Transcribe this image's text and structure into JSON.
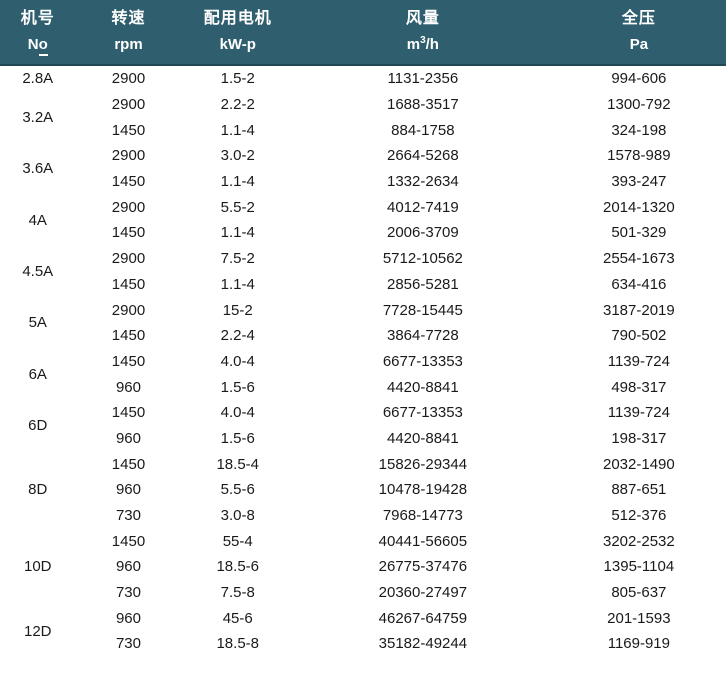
{
  "colors": {
    "header_bg": "#2F5E6E",
    "header_text": "#FFFFFF",
    "header_border": "#1F4754",
    "body_text": "#1A1A1A"
  },
  "header": {
    "cols": [
      {
        "label": "机号",
        "unit_n": "N",
        "unit_o": "o"
      },
      {
        "label": "转速",
        "unit": "rpm"
      },
      {
        "label": "配用电机",
        "unit": "kW-p"
      },
      {
        "label": "风量",
        "unit_m": "m",
        "unit_sup": "3",
        "unit_h": "/h"
      },
      {
        "label": "全压",
        "unit": "Pa"
      }
    ]
  },
  "table": {
    "groups": [
      {
        "model": "2.8A",
        "rows": [
          [
            "2900",
            "1.5-2",
            "1131-2356",
            "994-606"
          ]
        ]
      },
      {
        "model": "3.2A",
        "rows": [
          [
            "2900",
            "2.2-2",
            "1688-3517",
            "1300-792"
          ],
          [
            "1450",
            "1.1-4",
            "884-1758",
            "324-198"
          ]
        ]
      },
      {
        "model": "3.6A",
        "rows": [
          [
            "2900",
            "3.0-2",
            "2664-5268",
            "1578-989"
          ],
          [
            "1450",
            "1.1-4",
            "1332-2634",
            "393-247"
          ]
        ]
      },
      {
        "model": "4A",
        "rows": [
          [
            "2900",
            "5.5-2",
            "4012-7419",
            "2014-1320"
          ],
          [
            "1450",
            "1.1-4",
            "2006-3709",
            "501-329"
          ]
        ]
      },
      {
        "model": "4.5A",
        "rows": [
          [
            "2900",
            "7.5-2",
            "5712-10562",
            "2554-1673"
          ],
          [
            "1450",
            "1.1-4",
            "2856-5281",
            "634-416"
          ]
        ]
      },
      {
        "model": "5A",
        "rows": [
          [
            "2900",
            "15-2",
            "7728-15445",
            "3187-2019"
          ],
          [
            "1450",
            "2.2-4",
            "3864-7728",
            "790-502"
          ]
        ]
      },
      {
        "model": "6A",
        "rows": [
          [
            "1450",
            "4.0-4",
            "6677-13353",
            "1139-724"
          ],
          [
            "960",
            "1.5-6",
            "4420-8841",
            "498-317"
          ]
        ]
      },
      {
        "model": "6D",
        "rows": [
          [
            "1450",
            "4.0-4",
            "6677-13353",
            "1139-724"
          ],
          [
            "960",
            "1.5-6",
            "4420-8841",
            "198-317"
          ]
        ]
      },
      {
        "model": "8D",
        "rows": [
          [
            "1450",
            "18.5-4",
            "15826-29344",
            "2032-1490"
          ],
          [
            "960",
            "5.5-6",
            "10478-19428",
            "887-651"
          ],
          [
            "730",
            "3.0-8",
            "7968-14773",
            "512-376"
          ]
        ]
      },
      {
        "model": "10D",
        "rows": [
          [
            "1450",
            "55-4",
            "40441-56605",
            "3202-2532"
          ],
          [
            "960",
            "18.5-6",
            "26775-37476",
            "1395-1104"
          ],
          [
            "730",
            "7.5-8",
            "20360-27497",
            "805-637"
          ]
        ]
      },
      {
        "model": "12D",
        "rows": [
          [
            "960",
            "45-6",
            "46267-64759",
            "201-1593"
          ],
          [
            "730",
            "18.5-8",
            "35182-49244",
            "1169-919"
          ]
        ]
      }
    ]
  }
}
